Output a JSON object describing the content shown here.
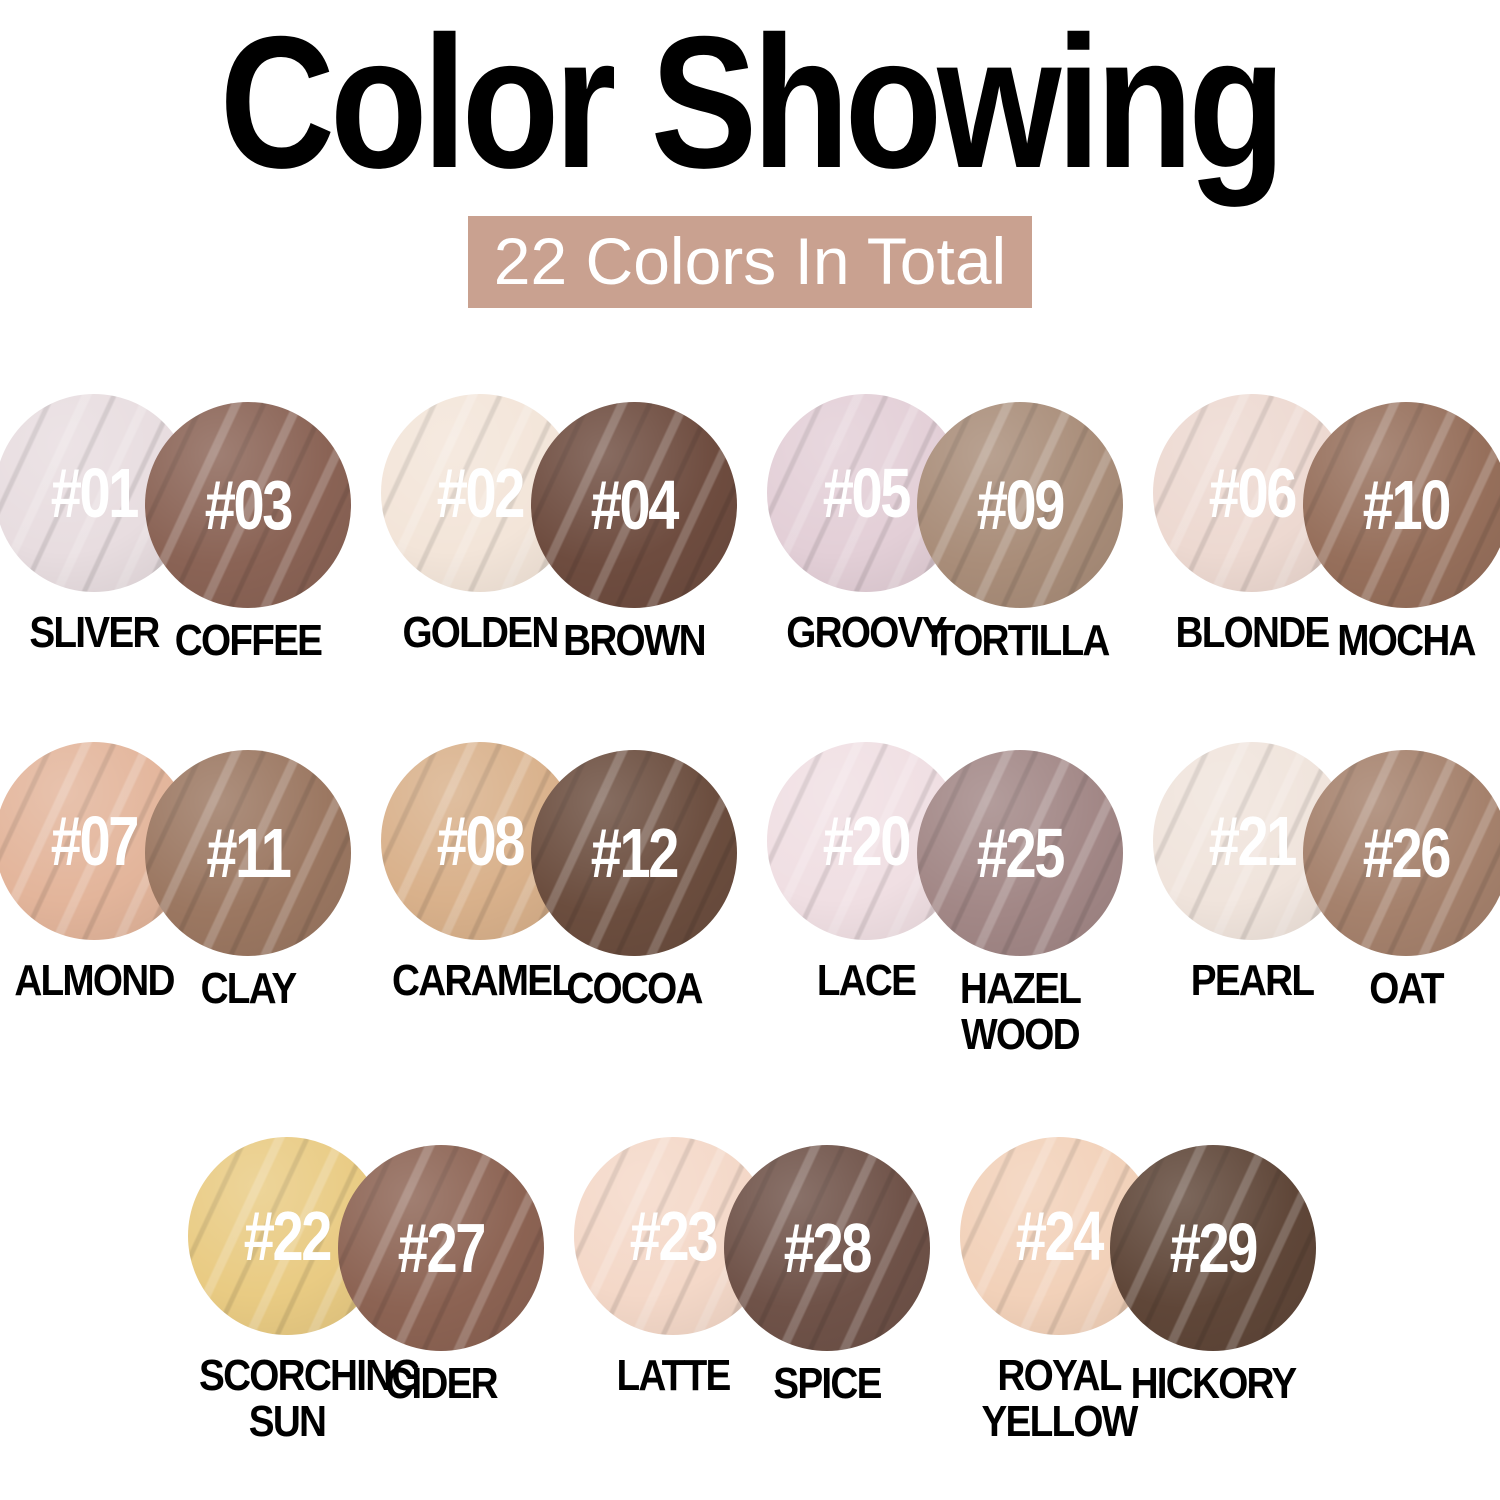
{
  "title": "Color Showing",
  "banner": {
    "text": "22 Colors In Total",
    "bg_color": "#c9a190",
    "text_color": "#ffffff"
  },
  "rows": [
    [
      {
        "left": {
          "num": "#01",
          "name": "SLIVER",
          "color": "#e8dde0"
        },
        "right": {
          "num": "#03",
          "name": "COFFEE",
          "color": "#8a6355"
        }
      },
      {
        "left": {
          "num": "#02",
          "name": "GOLDEN",
          "color": "#f3e5d9"
        },
        "right": {
          "num": "#04",
          "name": "BROWN",
          "color": "#6e4c3f"
        }
      },
      {
        "left": {
          "num": "#05",
          "name": "GROOVY",
          "color": "#e3cfd7"
        },
        "right": {
          "num": "#09",
          "name": "TORTILLA",
          "color": "#a98d79"
        }
      },
      {
        "left": {
          "num": "#06",
          "name": "BLONDE",
          "color": "#edd9d1"
        },
        "right": {
          "num": "#10",
          "name": "MOCHA",
          "color": "#966f5b"
        }
      }
    ],
    [
      {
        "left": {
          "num": "#07",
          "name": "ALMOND",
          "color": "#e3b59b"
        },
        "right": {
          "num": "#11",
          "name": "CLAY",
          "color": "#9b7761"
        }
      },
      {
        "left": {
          "num": "#08",
          "name": "CARAMEL",
          "color": "#d9b18b"
        },
        "right": {
          "num": "#12",
          "name": "COCOA",
          "color": "#6b4d3e"
        }
      },
      {
        "left": {
          "num": "#20",
          "name": "LACE",
          "color": "#f0dfe3"
        },
        "right": {
          "num": "#25",
          "name": "HAZEL WOOD",
          "color": "#a28786"
        }
      },
      {
        "left": {
          "num": "#21",
          "name": "PEARL",
          "color": "#f0e4dc"
        },
        "right": {
          "num": "#26",
          "name": "OAT",
          "color": "#a5816c"
        }
      }
    ],
    [
      {
        "left": {
          "num": "#22",
          "name": "SCORCHING SUN",
          "color": "#e9cb83"
        },
        "right": {
          "num": "#27",
          "name": "CIDER",
          "color": "#8c6353"
        }
      },
      {
        "left": {
          "num": "#23",
          "name": "LATTE",
          "color": "#f4d8c8"
        },
        "right": {
          "num": "#28",
          "name": "SPICE",
          "color": "#6f5248"
        }
      },
      {
        "left": {
          "num": "#24",
          "name": "ROYAL YELLOW",
          "color": "#f2d1b9"
        },
        "right": {
          "num": "#29",
          "name": "HICKORY",
          "color": "#5f4638"
        }
      }
    ]
  ]
}
